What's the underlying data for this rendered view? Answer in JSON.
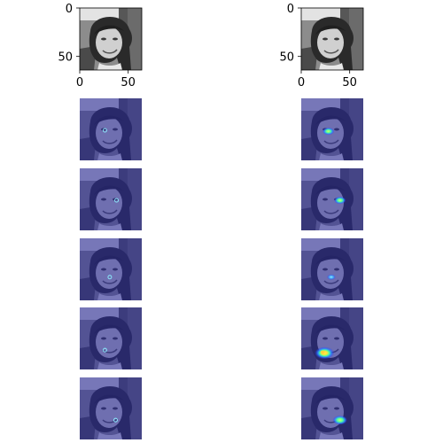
{
  "chart_data": {
    "type": "heatmap",
    "title": "",
    "image_size": [
      64,
      64
    ],
    "top_images": [
      {
        "xticks": [
          "0",
          "50"
        ],
        "yticks": [
          "0",
          "50"
        ],
        "xlim": [
          0,
          64
        ],
        "ylim": [
          64,
          0
        ]
      },
      {
        "xticks": [
          "0",
          "50"
        ],
        "yticks": [
          "0",
          "50"
        ],
        "xlim": [
          0,
          64
        ],
        "ylim": [
          64,
          0
        ]
      }
    ],
    "heatmap_rows": [
      {
        "left": {
          "x": 26,
          "y": 33,
          "intensity": 0.15
        },
        "right": {
          "x": 28,
          "y": 34,
          "intensity": 0.45
        }
      },
      {
        "left": {
          "x": 38,
          "y": 33,
          "intensity": 0.15
        },
        "right": {
          "x": 40,
          "y": 33,
          "intensity": 0.45
        }
      },
      {
        "left": {
          "x": 31,
          "y": 40,
          "intensity": 0.15
        },
        "right": {
          "x": 31,
          "y": 40,
          "intensity": 0.25
        }
      },
      {
        "left": {
          "x": 26,
          "y": 44,
          "intensity": 0.15
        },
        "right": {
          "x": 24,
          "y": 47,
          "intensity": 1.0
        }
      },
      {
        "left": {
          "x": 37,
          "y": 44,
          "intensity": 0.15
        },
        "right": {
          "x": 40,
          "y": 44,
          "intensity": 0.65
        }
      }
    ],
    "colors": {
      "overlay": "#2a2a9a",
      "background": "#ffffff",
      "axis": "#000000"
    }
  }
}
